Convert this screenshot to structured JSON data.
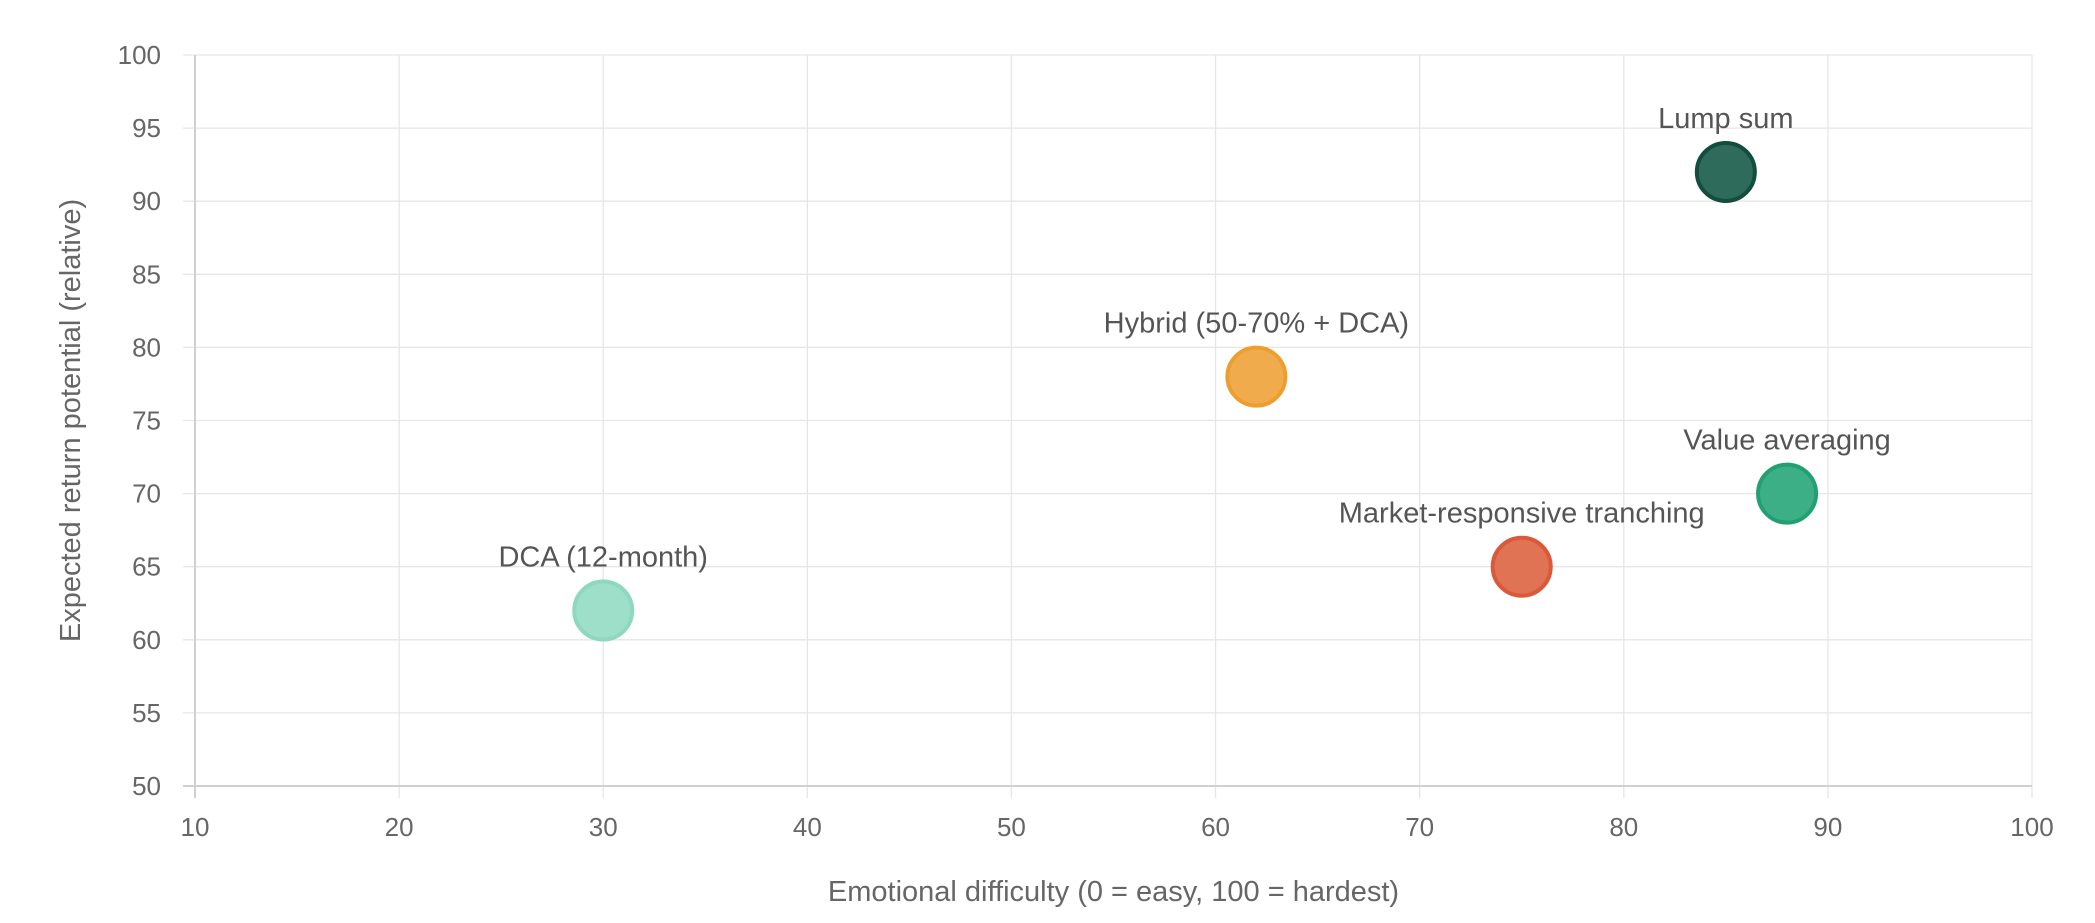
{
  "chart_data": {
    "type": "scatter",
    "title": "",
    "xlabel": "Emotional difficulty (0 = easy, 100 = hardest)",
    "ylabel": "Expected return potential (relative)",
    "xlim": [
      10,
      100
    ],
    "ylim": [
      50,
      100
    ],
    "x_ticks": [
      10,
      20,
      30,
      40,
      50,
      60,
      70,
      80,
      90,
      100
    ],
    "y_ticks": [
      50,
      55,
      60,
      65,
      70,
      75,
      80,
      85,
      90,
      95,
      100
    ],
    "grid": true,
    "points": [
      {
        "name": "DCA (12-month)",
        "x": 30,
        "y": 62,
        "fill": "#9edfca",
        "stroke": "#8fd8c0"
      },
      {
        "name": "Hybrid (50-70% + DCA)",
        "x": 62,
        "y": 78,
        "fill": "#f0ac4c",
        "stroke": "#ee9e2f"
      },
      {
        "name": "Market-responsive tranching",
        "x": 75,
        "y": 65,
        "fill": "#df7353",
        "stroke": "#d9593a"
      },
      {
        "name": "Lump sum",
        "x": 85,
        "y": 92,
        "fill": "#2f6b5b",
        "stroke": "#134d3d"
      },
      {
        "name": "Value averaging",
        "x": 88,
        "y": 70,
        "fill": "#3caf87",
        "stroke": "#22a074"
      }
    ]
  }
}
